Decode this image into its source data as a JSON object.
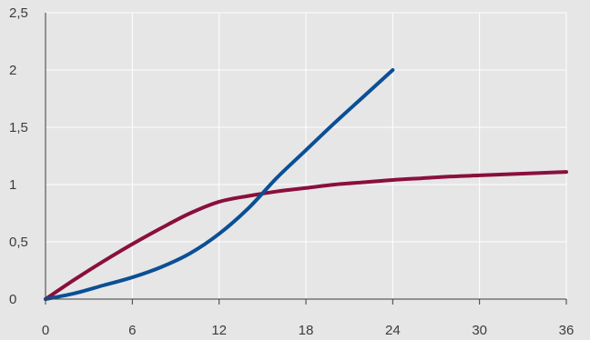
{
  "chart_data": {
    "type": "line",
    "title": "",
    "xlabel": "",
    "ylabel": "",
    "xlim": [
      0,
      36
    ],
    "ylim": [
      0,
      2.5
    ],
    "x_ticks": [
      0,
      6,
      12,
      18,
      24,
      30,
      36
    ],
    "x_tick_labels": [
      "0",
      "6",
      "12",
      "18",
      "24",
      "30",
      "36"
    ],
    "y_ticks": [
      0,
      0.5,
      1,
      1.5,
      2,
      2.5
    ],
    "y_tick_labels": [
      "0",
      "0,5",
      "1",
      "1,5",
      "2",
      "2,5"
    ],
    "grid": true,
    "background_color": "#e6e6e7",
    "grid_color": "#ffffff",
    "axis_color": "#3c3c3c",
    "series": [
      {
        "color": "#8a0f3c",
        "x": [
          0,
          2,
          4,
          6,
          8,
          10,
          12,
          14,
          16,
          18,
          20,
          22,
          24,
          26,
          28,
          30,
          32,
          34,
          36
        ],
        "y": [
          0,
          0.17,
          0.33,
          0.48,
          0.62,
          0.75,
          0.85,
          0.9,
          0.94,
          0.97,
          1.0,
          1.02,
          1.04,
          1.055,
          1.07,
          1.08,
          1.09,
          1.1,
          1.11
        ]
      },
      {
        "color": "#0b4f95",
        "x": [
          0,
          2,
          4,
          6,
          8,
          10,
          12,
          14,
          16,
          18,
          20,
          22,
          24
        ],
        "y": [
          0,
          0.05,
          0.12,
          0.19,
          0.28,
          0.4,
          0.57,
          0.79,
          1.06,
          1.3,
          1.54,
          1.77,
          2.0
        ]
      }
    ]
  }
}
